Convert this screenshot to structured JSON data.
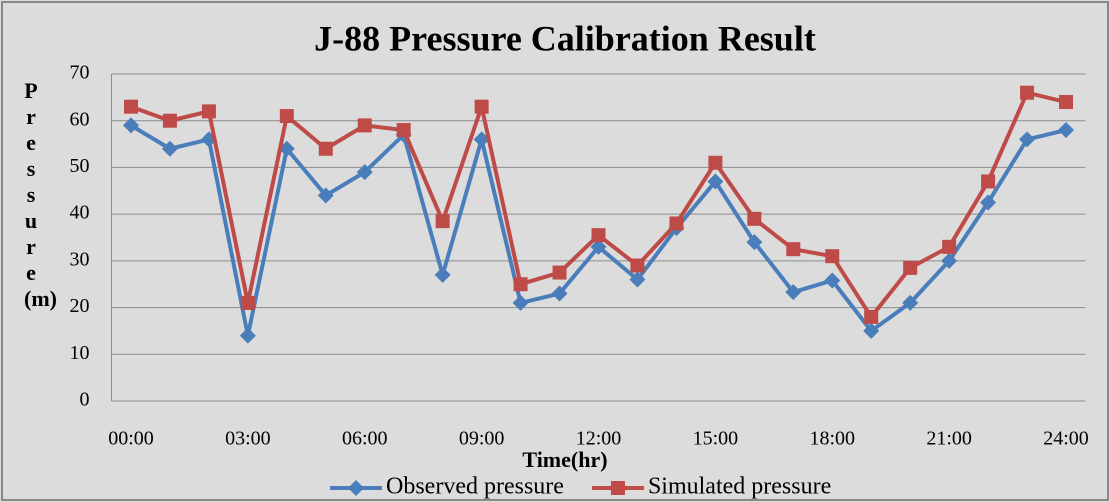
{
  "chart_data": {
    "type": "line",
    "title": "J-88 Pressure Calibration Result",
    "x_label": "Time(hr)",
    "y_label": "Pressure (m)",
    "categories": [
      "00:00",
      null,
      null,
      "03:00",
      null,
      null,
      "06:00",
      null,
      null,
      "09:00",
      null,
      null,
      "12:00",
      null,
      null,
      "15:00",
      null,
      null,
      "18:00",
      null,
      null,
      "21:00",
      null,
      null,
      "24:00"
    ],
    "series": [
      {
        "name": "Observed pressure",
        "color": "#4a7ebb",
        "marker": "diamond",
        "values": [
          59,
          54,
          56,
          14,
          54,
          44,
          49,
          57,
          27,
          56,
          21,
          23,
          33,
          26,
          37,
          47,
          34,
          23.3,
          25.8,
          15,
          21,
          30,
          42.5,
          56,
          58
        ]
      },
      {
        "name": "Simulated pressure",
        "color": "#be4b48",
        "marker": "square",
        "values": [
          63,
          60,
          62,
          21,
          61,
          54,
          59,
          58,
          38.5,
          63,
          25,
          27.5,
          35.5,
          29,
          38,
          51,
          39,
          32.5,
          31,
          18,
          28.5,
          33,
          47,
          66,
          64
        ]
      }
    ],
    "ylim": [
      0,
      70
    ],
    "yticks": [
      0,
      10,
      20,
      30,
      40,
      50,
      60,
      70
    ],
    "grid": true,
    "legend": "bottom"
  }
}
